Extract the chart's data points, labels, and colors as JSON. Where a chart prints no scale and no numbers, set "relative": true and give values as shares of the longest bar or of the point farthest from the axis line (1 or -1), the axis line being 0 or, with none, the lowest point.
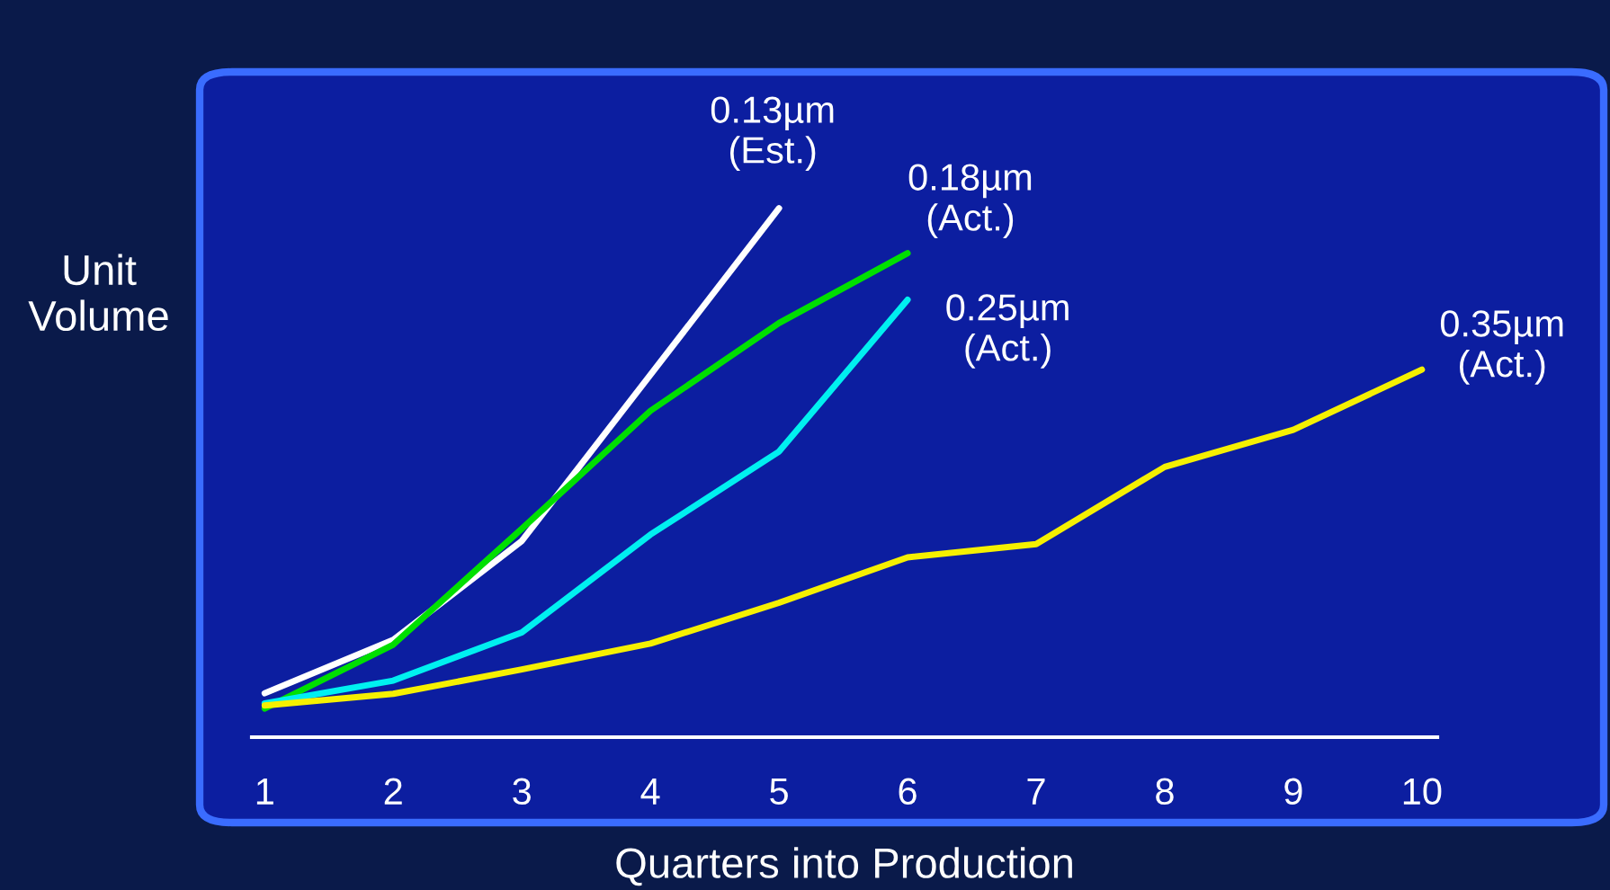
{
  "chart_data": {
    "type": "line",
    "relative": true,
    "xlabel": "Quarters into Production",
    "ylabel": "Unit\nVolume",
    "categories": [
      "1",
      "2",
      "3",
      "4",
      "5",
      "6",
      "7",
      "8",
      "9",
      "10"
    ],
    "series": [
      {
        "name": "0.13µm\n(Est.)",
        "color": "#ffffff",
        "values": [
          0.083,
          0.184,
          0.371,
          0.685,
          1,
          null,
          null,
          null,
          null,
          null
        ]
      },
      {
        "name": "0.18µm\n(Act.)",
        "color": "#00e000",
        "values": [
          0.054,
          0.175,
          0.394,
          0.617,
          0.783,
          0.915,
          null,
          null,
          null,
          null
        ]
      },
      {
        "name": "0.25µm\n(Act.)",
        "color": "#00f0f0",
        "values": [
          0.064,
          0.107,
          0.198,
          0.383,
          0.54,
          0.827,
          null,
          null,
          null,
          null
        ]
      },
      {
        "name": "0.35µm\n(Act.)",
        "color": "#f5f000",
        "values": [
          0.06,
          0.082,
          0.128,
          0.177,
          0.254,
          0.34,
          0.365,
          0.511,
          0.581,
          0.695
        ]
      }
    ],
    "grid": false,
    "legend": false,
    "marker": "none",
    "line_style": "solid"
  }
}
